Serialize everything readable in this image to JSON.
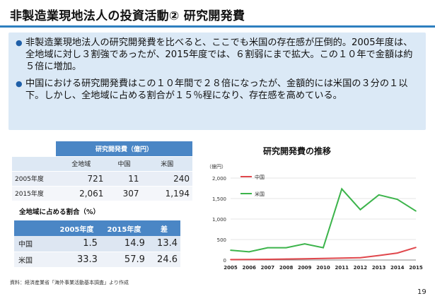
{
  "title": "非製造業現地法人の投資活動② 研究開発費",
  "bullets": [
    "非製造業現地法人の研究開発費を比べると、ここでも米国の存在感が圧倒的。2005年度は、全地域に対し３割強であったが、2015年度では、６割弱にまで拡大。この１０年で金額は約５倍に増加。",
    "中国における研究開発費はこの１０年間で２８倍になったが、金額的には米国の３分の１以下。しかし、全地域に占める割合が１５％程になり、存在感を高めている。"
  ],
  "rd_table": {
    "header": "研究開発費（億円）",
    "columns": [
      "全地域",
      "中国",
      "米国"
    ],
    "rows": [
      {
        "label": "2005年度",
        "values": [
          "721",
          "11",
          "240"
        ]
      },
      {
        "label": "2015年度",
        "values": [
          "2,061",
          "307",
          "1,194"
        ]
      }
    ]
  },
  "share_table": {
    "caption": "全地域に占める割合（%）",
    "columns": [
      "2005年度",
      "2015年度",
      "差"
    ],
    "rows": [
      {
        "label": "中国",
        "values": [
          "1.5",
          "14.9",
          "13.4"
        ]
      },
      {
        "label": "米国",
        "values": [
          "33.3",
          "57.9",
          "24.6"
        ]
      }
    ]
  },
  "source": "資料：経済産業省「海外事業活動基本調査」より作成",
  "page_number": "19",
  "chart_data": {
    "type": "line",
    "title": "研究開発費の推移",
    "ylabel": "（億円）",
    "categories": [
      "2005",
      "2006",
      "2007",
      "2008",
      "2009",
      "2010",
      "2011",
      "2012",
      "2013",
      "2014",
      "2015"
    ],
    "ylim": [
      0,
      2000
    ],
    "yticks": [
      "0",
      "500",
      "1,000",
      "1,500",
      "2,000"
    ],
    "legend_position": "top-left",
    "series": [
      {
        "name": "中国",
        "color": "#e0474c",
        "values": [
          11,
          12,
          18,
          24,
          30,
          38,
          48,
          55,
          110,
          170,
          307
        ]
      },
      {
        "name": "米国",
        "color": "#3cb44b",
        "values": [
          240,
          200,
          300,
          300,
          395,
          300,
          1735,
          1230,
          1590,
          1480,
          1194
        ]
      }
    ]
  }
}
